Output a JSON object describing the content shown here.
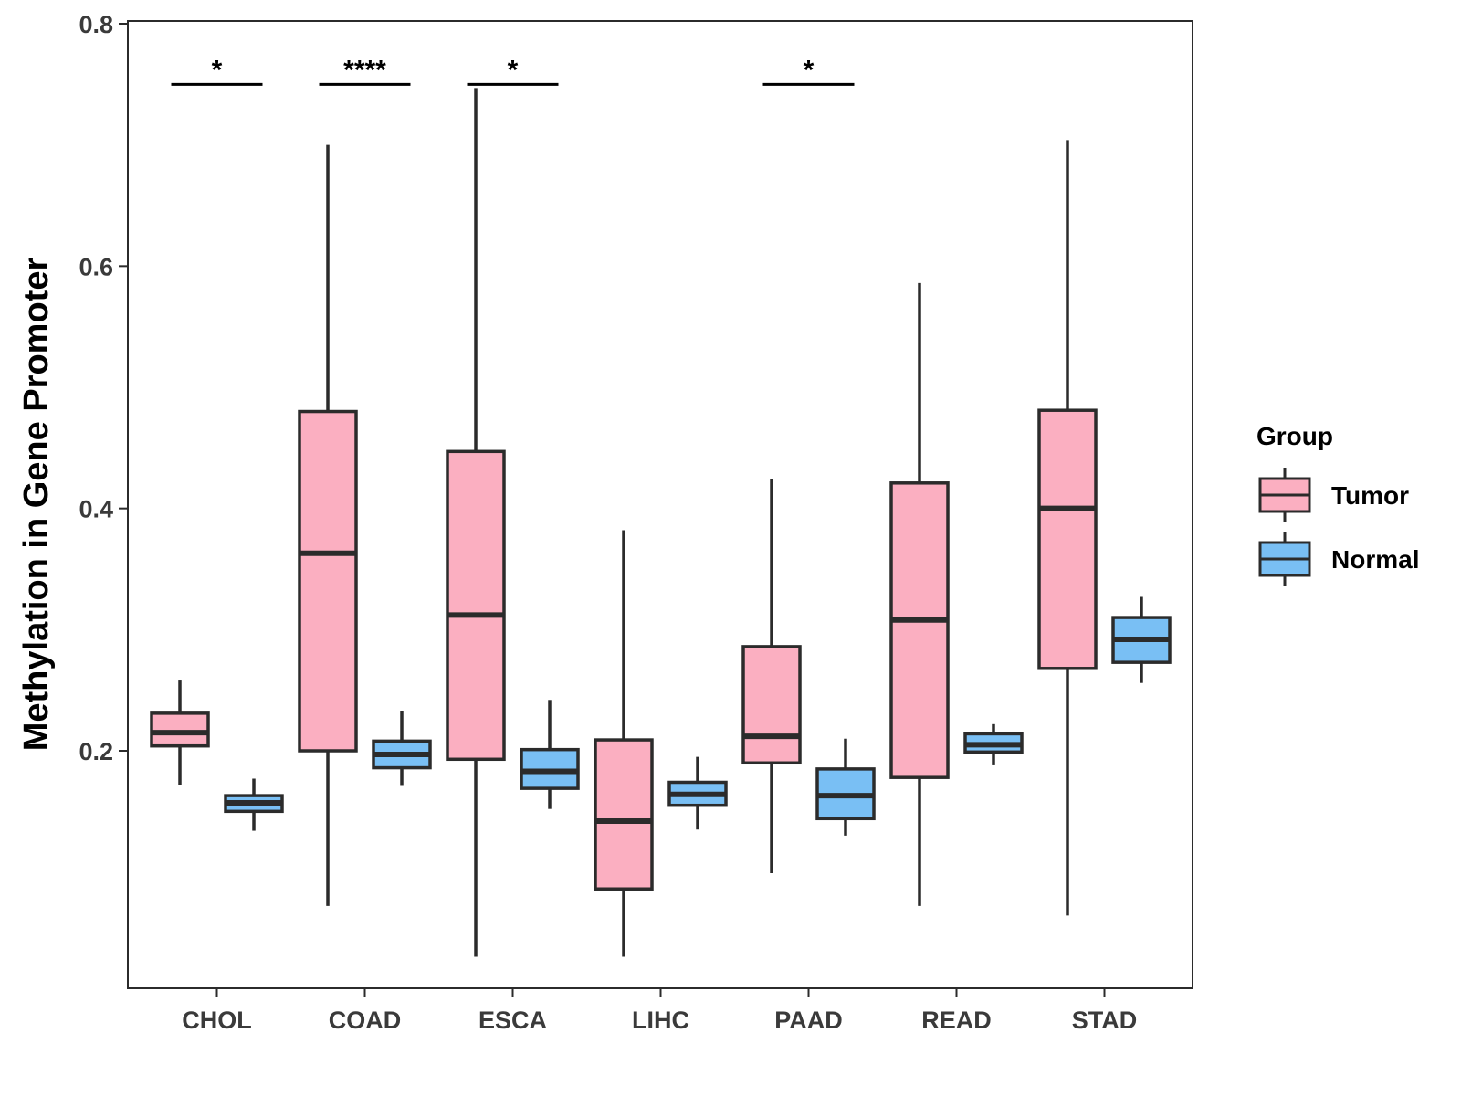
{
  "chart_data": {
    "type": "boxplot",
    "title": "",
    "xlabel": "",
    "ylabel": "Methylation in Gene Promoter",
    "ylim": [
      0.0,
      0.8
    ],
    "yticks": [
      0.2,
      0.4,
      0.6,
      0.8
    ],
    "ytick_labels": [
      "0.2",
      "0.4",
      "0.6",
      "0.8"
    ],
    "categories": [
      "CHOL",
      "COAD",
      "ESCA",
      "LIHC",
      "PAAD",
      "READ",
      "STAD"
    ],
    "legend": {
      "title": "Group",
      "position": "right",
      "entries": [
        {
          "name": "Tumor",
          "color": "#FBAFC1"
        },
        {
          "name": "Normal",
          "color": "#79BFF4"
        }
      ]
    },
    "series": [
      {
        "name": "Tumor",
        "color": "#FBAFC1",
        "boxes": [
          {
            "min": 0.172,
            "q1": 0.204,
            "median": 0.215,
            "q3": 0.231,
            "max": 0.258
          },
          {
            "min": 0.072,
            "q1": 0.2,
            "median": 0.363,
            "q3": 0.48,
            "max": 0.7
          },
          {
            "min": 0.03,
            "q1": 0.193,
            "median": 0.312,
            "q3": 0.447,
            "max": 0.747
          },
          {
            "min": 0.03,
            "q1": 0.086,
            "median": 0.142,
            "q3": 0.209,
            "max": 0.382
          },
          {
            "min": 0.099,
            "q1": 0.19,
            "median": 0.212,
            "q3": 0.286,
            "max": 0.424
          },
          {
            "min": 0.072,
            "q1": 0.178,
            "median": 0.308,
            "q3": 0.421,
            "max": 0.586
          },
          {
            "min": 0.064,
            "q1": 0.268,
            "median": 0.4,
            "q3": 0.481,
            "max": 0.704
          }
        ]
      },
      {
        "name": "Normal",
        "color": "#79BFF4",
        "boxes": [
          {
            "min": 0.134,
            "q1": 0.15,
            "median": 0.157,
            "q3": 0.163,
            "max": 0.177
          },
          {
            "min": 0.171,
            "q1": 0.186,
            "median": 0.197,
            "q3": 0.208,
            "max": 0.233
          },
          {
            "min": 0.152,
            "q1": 0.169,
            "median": 0.183,
            "q3": 0.201,
            "max": 0.242
          },
          {
            "min": 0.135,
            "q1": 0.155,
            "median": 0.164,
            "q3": 0.174,
            "max": 0.195
          },
          {
            "min": 0.13,
            "q1": 0.144,
            "median": 0.163,
            "q3": 0.185,
            "max": 0.21
          },
          {
            "min": 0.188,
            "q1": 0.199,
            "median": 0.205,
            "q3": 0.214,
            "max": 0.222
          },
          {
            "min": 0.256,
            "q1": 0.273,
            "median": 0.292,
            "q3": 0.31,
            "max": 0.327
          }
        ]
      }
    ],
    "significance": [
      {
        "category": "CHOL",
        "label": "*",
        "y": 0.75
      },
      {
        "category": "COAD",
        "label": "****",
        "y": 0.75
      },
      {
        "category": "ESCA",
        "label": "*",
        "y": 0.75
      },
      {
        "category": "PAAD",
        "label": "*",
        "y": 0.75
      }
    ]
  }
}
